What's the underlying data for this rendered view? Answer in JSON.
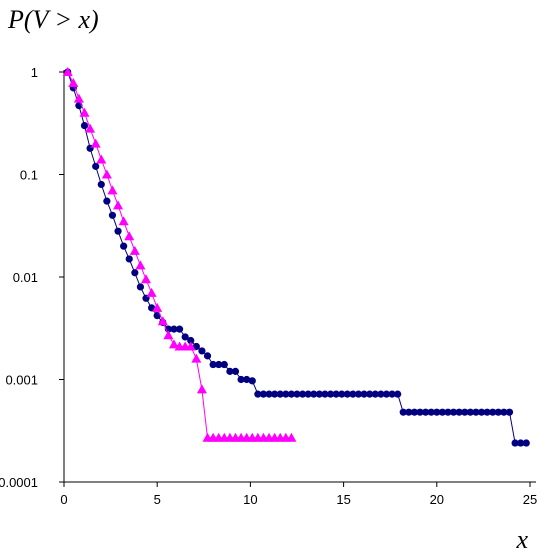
{
  "chart_data": {
    "type": "line",
    "title": "",
    "ylabel": "P(V > x)",
    "xlabel": "x",
    "xlim": [
      0,
      25
    ],
    "ylim": [
      0.0001,
      1
    ],
    "yscale": "log",
    "grid": false,
    "legend": "none",
    "xticks": [
      "0",
      "5",
      "10",
      "15",
      "20",
      "25"
    ],
    "yticks": [
      "1",
      "0.1",
      "0.01",
      "0.001",
      "0.0001"
    ],
    "series": [
      {
        "marker": "circle",
        "color": "#000080",
        "x": [
          0.2,
          0.5,
          0.8,
          1.1,
          1.4,
          1.7,
          2.0,
          2.3,
          2.6,
          2.9,
          3.2,
          3.5,
          3.8,
          4.1,
          4.4,
          4.7,
          5.0,
          5.3,
          5.6,
          5.9,
          6.2,
          6.5,
          6.8,
          7.1,
          7.4,
          7.7,
          8.0,
          8.3,
          8.6,
          8.9,
          9.2,
          9.5,
          9.8,
          10.1,
          10.4,
          10.7,
          11.0,
          11.3,
          11.6,
          11.9,
          12.2,
          12.5,
          12.8,
          13.1,
          13.4,
          13.7,
          14.0,
          14.3,
          14.6,
          14.9,
          15.2,
          15.5,
          15.8,
          16.1,
          16.4,
          16.7,
          17.0,
          17.3,
          17.6,
          17.9,
          18.2,
          18.5,
          18.8,
          19.1,
          19.4,
          19.7,
          20.0,
          20.3,
          20.6,
          20.9,
          21.2,
          21.5,
          21.8,
          22.1,
          22.4,
          22.7,
          23.0,
          23.3,
          23.6,
          23.9,
          24.2,
          24.5,
          24.8
        ],
        "y": [
          1.0,
          0.7,
          0.47,
          0.3,
          0.18,
          0.12,
          0.08,
          0.055,
          0.04,
          0.028,
          0.02,
          0.015,
          0.011,
          0.008,
          0.0062,
          0.005,
          0.0042,
          0.0036,
          0.0031,
          0.0031,
          0.0031,
          0.0026,
          0.0024,
          0.0021,
          0.0019,
          0.0017,
          0.0014,
          0.0014,
          0.0014,
          0.0012,
          0.0012,
          0.001,
          0.001,
          0.00097,
          0.00072,
          0.00072,
          0.00072,
          0.00072,
          0.00072,
          0.00072,
          0.00072,
          0.00072,
          0.00072,
          0.00072,
          0.00072,
          0.00072,
          0.00072,
          0.00072,
          0.00072,
          0.00072,
          0.00072,
          0.00072,
          0.00072,
          0.00072,
          0.00072,
          0.00072,
          0.00072,
          0.00072,
          0.00072,
          0.00072,
          0.00048,
          0.00048,
          0.00048,
          0.00048,
          0.00048,
          0.00048,
          0.00048,
          0.00048,
          0.00048,
          0.00048,
          0.00048,
          0.00048,
          0.00048,
          0.00048,
          0.00048,
          0.00048,
          0.00048,
          0.00048,
          0.00048,
          0.00048,
          0.00024,
          0.00024,
          0.00024
        ]
      },
      {
        "marker": "triangle",
        "color": "#ff00ff",
        "x": [
          0.2,
          0.5,
          0.8,
          1.1,
          1.4,
          1.7,
          2.0,
          2.3,
          2.6,
          2.9,
          3.2,
          3.5,
          3.8,
          4.1,
          4.4,
          4.7,
          5.0,
          5.3,
          5.6,
          5.9,
          6.2,
          6.5,
          6.8,
          7.1,
          7.4,
          7.7,
          8.0,
          8.3,
          8.6,
          8.9,
          9.2,
          9.5,
          9.8,
          10.1,
          10.4,
          10.7,
          11.0,
          11.3,
          11.6,
          11.9,
          12.2
        ],
        "y": [
          1.0,
          0.78,
          0.55,
          0.4,
          0.28,
          0.2,
          0.14,
          0.1,
          0.07,
          0.05,
          0.035,
          0.025,
          0.018,
          0.013,
          0.0095,
          0.007,
          0.005,
          0.0037,
          0.0027,
          0.0022,
          0.0021,
          0.0021,
          0.0021,
          0.0016,
          0.0008,
          0.00027,
          0.00027,
          0.00027,
          0.00027,
          0.00027,
          0.00027,
          0.00027,
          0.00027,
          0.00027,
          0.00027,
          0.00027,
          0.00027,
          0.00027,
          0.00027,
          0.00027,
          0.00027
        ]
      }
    ]
  }
}
